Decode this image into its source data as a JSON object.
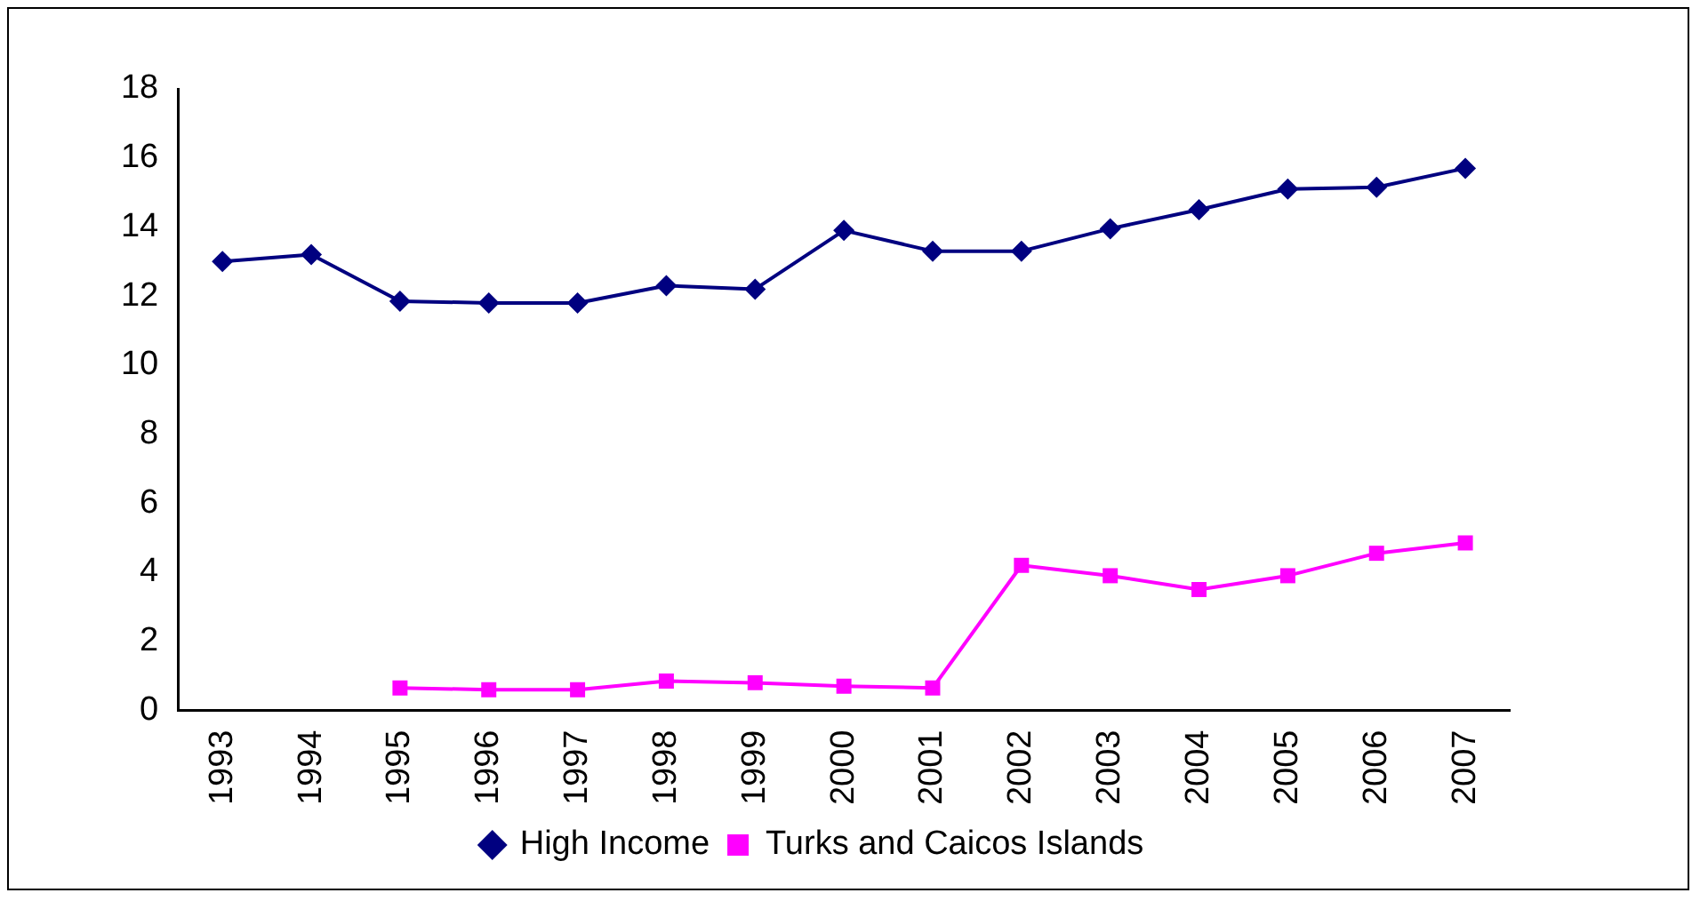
{
  "chart_data": {
    "type": "line",
    "categories": [
      "1993",
      "1994",
      "1995",
      "1996",
      "1997",
      "1998",
      "1999",
      "2000",
      "2001",
      "2002",
      "2003",
      "2004",
      "2005",
      "2006",
      "2007"
    ],
    "ylim": [
      0,
      18
    ],
    "yticks": [
      0,
      2,
      4,
      6,
      8,
      10,
      12,
      14,
      16,
      18
    ],
    "grid": false,
    "legend": "bottom",
    "line_style": "solid",
    "series": [
      {
        "name": "High Income",
        "color": "#000080",
        "marker": "diamond",
        "values": [
          13.0,
          13.2,
          11.85,
          11.8,
          11.8,
          12.3,
          12.2,
          13.9,
          13.3,
          13.3,
          13.95,
          14.5,
          15.1,
          15.15,
          15.7
        ]
      },
      {
        "name": "Turks and Caicos Islands",
        "color": "#ff00ff",
        "marker": "square",
        "values": [
          null,
          null,
          0.65,
          0.6,
          0.6,
          0.85,
          0.8,
          0.7,
          0.65,
          4.2,
          3.9,
          3.5,
          3.9,
          4.55,
          4.85
        ]
      }
    ]
  }
}
